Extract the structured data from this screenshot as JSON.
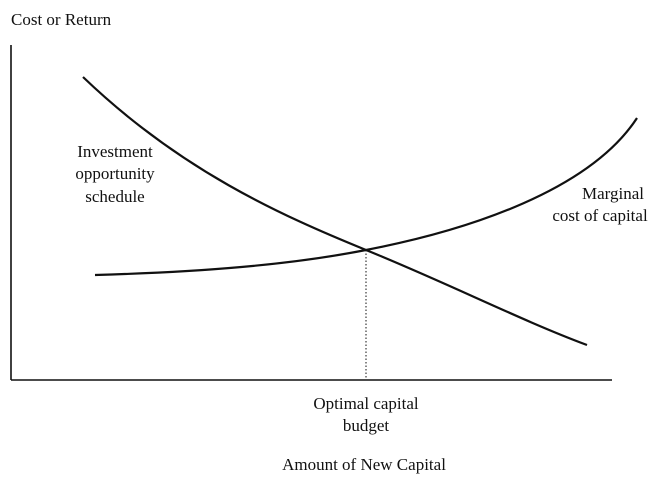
{
  "y_axis": {
    "label": "Cost or Return"
  },
  "x_axis": {
    "label": "Amount of New Capital"
  },
  "curves": [
    {
      "label": [
        "Investment",
        "opportunity",
        "schedule"
      ]
    },
    {
      "label": [
        "Marginal",
        "cost of capital"
      ]
    }
  ],
  "marker": {
    "label": [
      "Optimal capital",
      "budget"
    ]
  }
}
